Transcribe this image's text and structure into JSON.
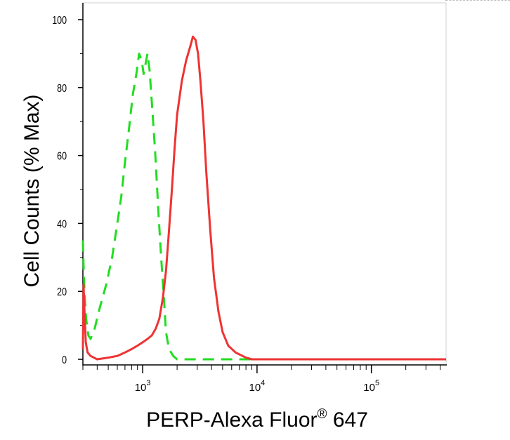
{
  "chart_data": {
    "type": "line",
    "title": "",
    "xlabel_main": "PERP-Alexa Fluor",
    "xlabel_sup": "®",
    "xlabel_tail": " 647",
    "ylabel": "Cell Counts (% Max)",
    "x_scale": "log",
    "xlim": [
      300,
      450000
    ],
    "ylim": [
      0,
      105
    ],
    "y_ticks": [
      0,
      20,
      40,
      60,
      80,
      100
    ],
    "x_ticks": [
      {
        "value": 1000,
        "base": "10",
        "exp": "3"
      },
      {
        "value": 10000,
        "base": "10",
        "exp": "4"
      },
      {
        "value": 100000,
        "base": "10",
        "exp": "5"
      }
    ],
    "grid": false,
    "legend": "none",
    "series": [
      {
        "style": "dashed",
        "color": "#22dd22",
        "points": [
          [
            300,
            35
          ],
          [
            304,
            28
          ],
          [
            310,
            20
          ],
          [
            320,
            12
          ],
          [
            335,
            7
          ],
          [
            350,
            6
          ],
          [
            380,
            9
          ],
          [
            420,
            15
          ],
          [
            480,
            22
          ],
          [
            540,
            30
          ],
          [
            600,
            40
          ],
          [
            650,
            48
          ],
          [
            700,
            58
          ],
          [
            760,
            68
          ],
          [
            820,
            78
          ],
          [
            880,
            84
          ],
          [
            930,
            90
          ],
          [
            980,
            88
          ],
          [
            1020,
            84
          ],
          [
            1060,
            87
          ],
          [
            1100,
            90
          ],
          [
            1150,
            85
          ],
          [
            1200,
            76
          ],
          [
            1280,
            62
          ],
          [
            1380,
            42
          ],
          [
            1450,
            30
          ],
          [
            1520,
            20
          ],
          [
            1600,
            8
          ],
          [
            1700,
            3
          ],
          [
            1850,
            1
          ],
          [
            2000,
            0
          ],
          [
            2500,
            0
          ],
          [
            3000,
            0
          ],
          [
            5000,
            0
          ],
          [
            10000,
            0
          ],
          [
            100000,
            0
          ],
          [
            450000,
            0
          ]
        ]
      },
      {
        "style": "solid",
        "color": "#ee3333",
        "points": [
          [
            300,
            3
          ],
          [
            304,
            22
          ],
          [
            310,
            14
          ],
          [
            318,
            5
          ],
          [
            330,
            2
          ],
          [
            350,
            1
          ],
          [
            400,
            0
          ],
          [
            500,
            0.5
          ],
          [
            600,
            1
          ],
          [
            700,
            2
          ],
          [
            800,
            3
          ],
          [
            900,
            4
          ],
          [
            1000,
            5
          ],
          [
            1100,
            6
          ],
          [
            1200,
            7
          ],
          [
            1300,
            9
          ],
          [
            1400,
            12
          ],
          [
            1500,
            18
          ],
          [
            1600,
            26
          ],
          [
            1700,
            38
          ],
          [
            1800,
            50
          ],
          [
            1900,
            62
          ],
          [
            2000,
            72
          ],
          [
            2200,
            82
          ],
          [
            2400,
            88
          ],
          [
            2600,
            92
          ],
          [
            2750,
            95
          ],
          [
            2900,
            94
          ],
          [
            3050,
            90
          ],
          [
            3200,
            82
          ],
          [
            3400,
            70
          ],
          [
            3600,
            55
          ],
          [
            3900,
            38
          ],
          [
            4200,
            24
          ],
          [
            4600,
            14
          ],
          [
            5000,
            8
          ],
          [
            5600,
            4
          ],
          [
            6500,
            2
          ],
          [
            8000,
            0.5
          ],
          [
            9000,
            0
          ],
          [
            20000,
            0
          ],
          [
            100000,
            0
          ],
          [
            450000,
            0
          ]
        ]
      }
    ]
  }
}
